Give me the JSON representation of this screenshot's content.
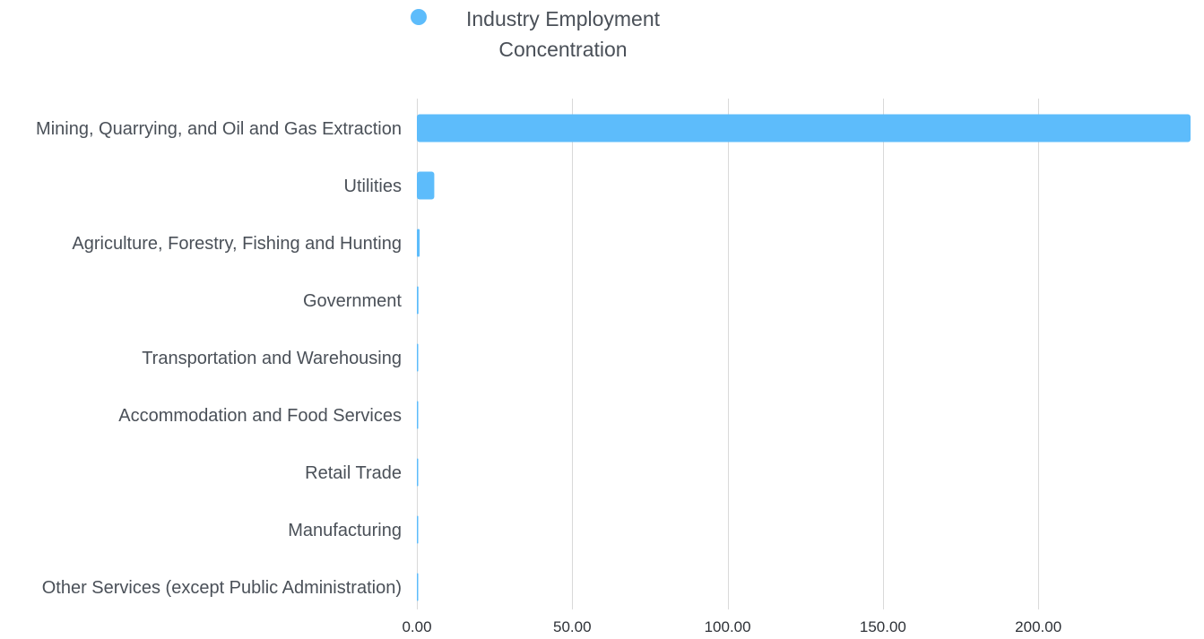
{
  "legend": {
    "label": "Industry Employment Concentration",
    "icon": "circle-icon"
  },
  "colors": {
    "bar": "#5dbcfb",
    "grid": "#d9d9d9"
  },
  "chart_data": {
    "type": "bar",
    "orientation": "horizontal",
    "title": "",
    "xlabel": "",
    "ylabel": "",
    "legend_position": "top",
    "grid": true,
    "categories": [
      "Mining, Quarrying, and Oil and Gas Extraction",
      "Utilities",
      "Agriculture, Forestry, Fishing and Hunting",
      "Government",
      "Transportation and Warehousing",
      "Accommodation and Food Services",
      "Retail Trade",
      "Manufacturing",
      "Other Services (except Public Administration)"
    ],
    "series": [
      {
        "name": "Industry Employment Concentration",
        "values": [
          249,
          5.6,
          0.9,
          0.5,
          0.2,
          0.15,
          0.12,
          0.1,
          0.08
        ]
      }
    ],
    "xlim": [
      0,
      249
    ],
    "ticks": [
      0,
      50,
      100,
      150,
      200
    ],
    "tick_labels": [
      "0.00",
      "50.00",
      "100.00",
      "150.00",
      "200.00"
    ]
  }
}
